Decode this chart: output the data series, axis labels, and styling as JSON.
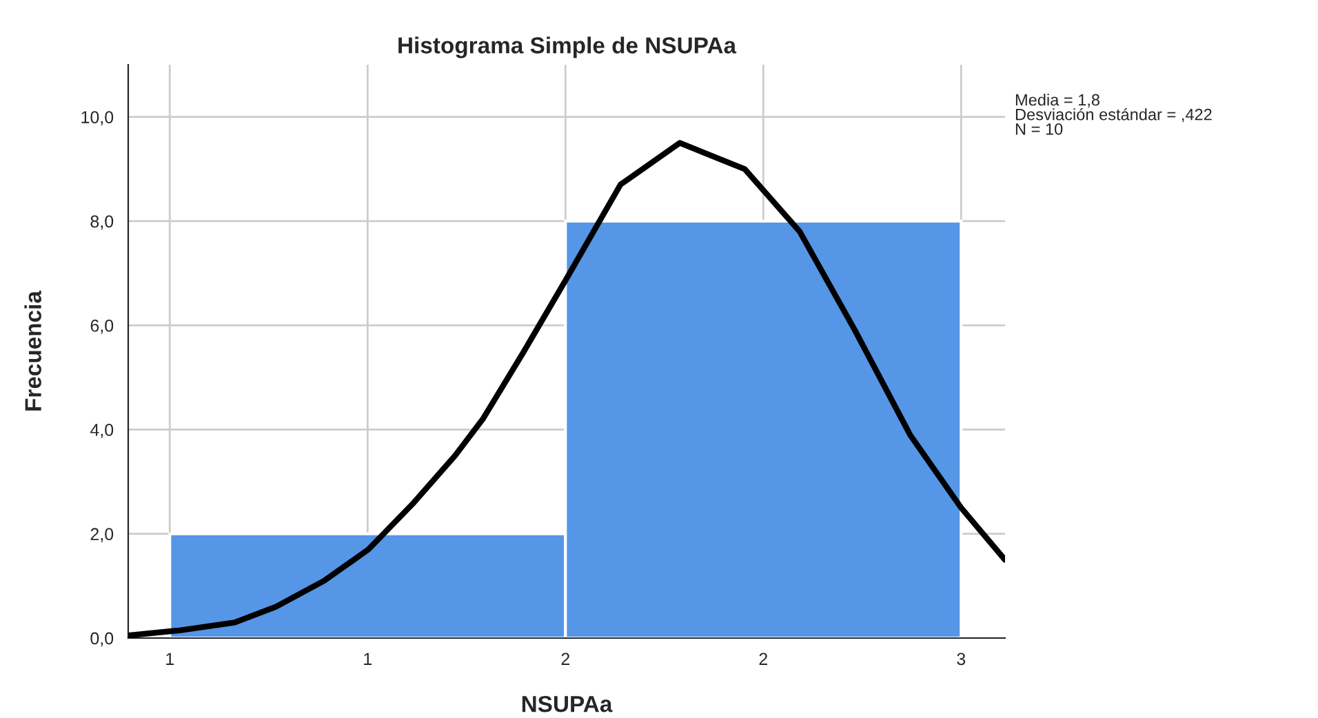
{
  "chart_data": {
    "type": "histogram",
    "title": "Histograma Simple de NSUPAa",
    "xlabel": "NSUPAa",
    "ylabel": "Frecuencia",
    "bins": [
      1,
      2,
      3
    ],
    "values": [
      2,
      8
    ],
    "color": "#5596e6",
    "series": [
      {
        "type": "line",
        "color": "#000000",
        "x": [
          0.895,
          1.028,
          1.164,
          1.268,
          1.39,
          1.502,
          1.617,
          1.721,
          1.791,
          1.895,
          2.003,
          2.139,
          2.289,
          2.453,
          2.592,
          2.732,
          2.871,
          3.0,
          3.111
        ],
        "values": [
          0.05,
          0.15,
          0.3,
          0.6,
          1.1,
          1.7,
          2.6,
          3.5,
          4.2,
          5.5,
          6.9,
          8.7,
          9.5,
          9.0,
          7.8,
          5.9,
          3.9,
          2.5,
          1.5
        ]
      }
    ],
    "xlim": [
      0.895,
      3.111
    ],
    "ylim": [
      0,
      11
    ],
    "xticks": [
      {
        "value": 1,
        "label": "1"
      },
      {
        "value": 1.5,
        "label": "1"
      },
      {
        "value": 2,
        "label": "2"
      },
      {
        "value": 2.5,
        "label": "2"
      },
      {
        "value": 3,
        "label": "3"
      }
    ],
    "yticks": [
      {
        "value": 0,
        "label": "0,0"
      },
      {
        "value": 2,
        "label": "2,0"
      },
      {
        "value": 4,
        "label": "4,0"
      },
      {
        "value": 6,
        "label": "6,0"
      },
      {
        "value": 8,
        "label": "8,0"
      },
      {
        "value": 10,
        "label": "10,0"
      }
    ],
    "grid": true,
    "annotations": [
      "Media = 1,8",
      "Desviación estándar = ,422",
      "N = 10"
    ]
  }
}
